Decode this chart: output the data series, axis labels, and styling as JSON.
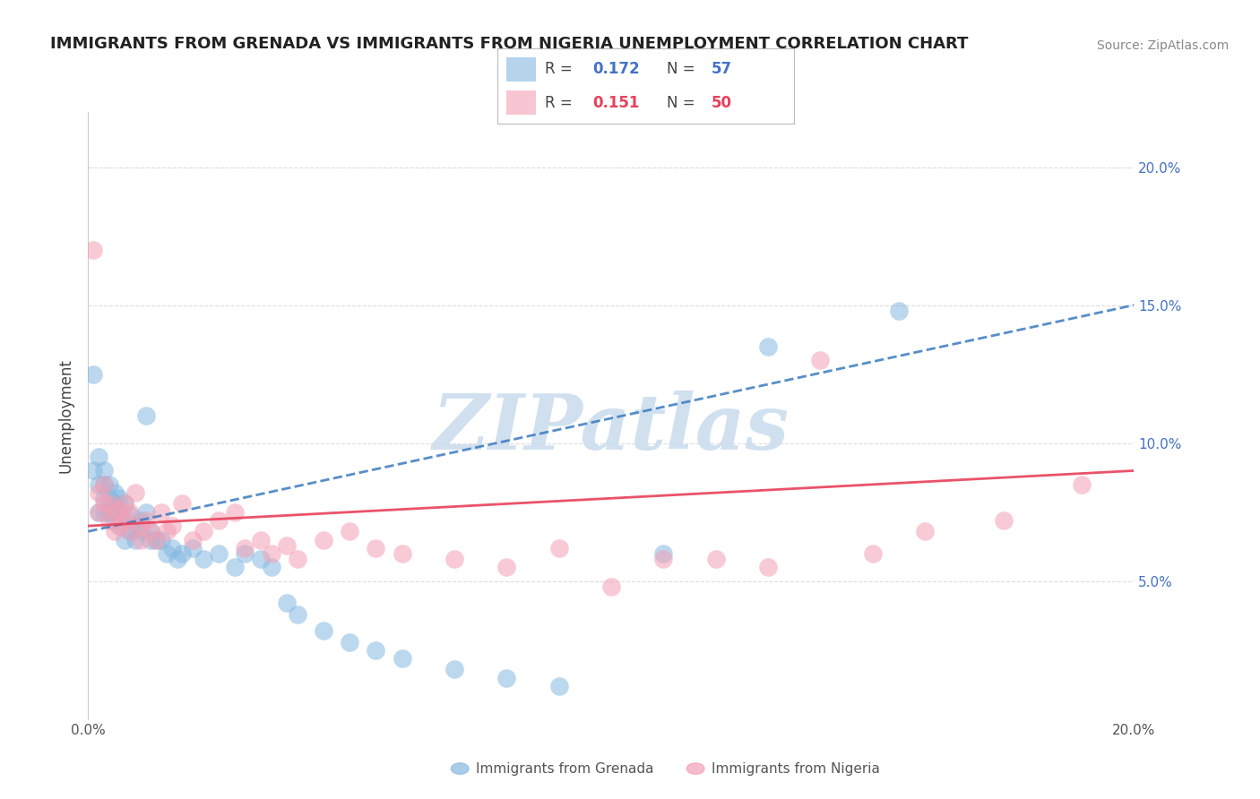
{
  "title": "IMMIGRANTS FROM GRENADA VS IMMIGRANTS FROM NIGERIA UNEMPLOYMENT CORRELATION CHART",
  "source": "Source: ZipAtlas.com",
  "ylabel": "Unemployment",
  "grenada_R": 0.172,
  "grenada_N": 57,
  "nigeria_R": 0.151,
  "nigeria_N": 50,
  "grenada_color": "#85b8e0",
  "nigeria_color": "#f4a0b5",
  "grenada_line_color": "#3a7abf",
  "nigeria_line_color": "#e8405a",
  "watermark_text": "ZIPatlas",
  "watermark_color": "#ccddee",
  "legend_label_grenada": "Immigrants from Grenada",
  "legend_label_nigeria": "Immigrants from Nigeria",
  "background_color": "#ffffff",
  "grid_color": "#dddddd",
  "xlim": [
    0.0,
    0.2
  ],
  "ylim": [
    0.0,
    0.22
  ],
  "x_tick_positions": [
    0.0,
    0.05,
    0.1,
    0.15,
    0.2
  ],
  "x_tick_labels": [
    "0.0%",
    "",
    "",
    "",
    "20.0%"
  ],
  "y_tick_positions": [
    0.05,
    0.1,
    0.15,
    0.2
  ],
  "y_tick_labels": [
    "5.0%",
    "10.0%",
    "15.0%",
    "20.0%"
  ],
  "grenada_x": [
    0.001,
    0.001,
    0.002,
    0.002,
    0.002,
    0.003,
    0.003,
    0.003,
    0.003,
    0.004,
    0.004,
    0.004,
    0.005,
    0.005,
    0.005,
    0.005,
    0.006,
    0.006,
    0.006,
    0.007,
    0.007,
    0.007,
    0.008,
    0.008,
    0.009,
    0.009,
    0.01,
    0.01,
    0.011,
    0.011,
    0.012,
    0.012,
    0.013,
    0.014,
    0.015,
    0.016,
    0.017,
    0.018,
    0.02,
    0.022,
    0.025,
    0.028,
    0.03,
    0.033,
    0.035,
    0.038,
    0.04,
    0.045,
    0.05,
    0.055,
    0.06,
    0.07,
    0.08,
    0.09,
    0.11,
    0.13,
    0.155
  ],
  "grenada_y": [
    0.125,
    0.09,
    0.085,
    0.095,
    0.075,
    0.08,
    0.09,
    0.075,
    0.085,
    0.075,
    0.08,
    0.085,
    0.075,
    0.072,
    0.078,
    0.082,
    0.07,
    0.075,
    0.08,
    0.065,
    0.072,
    0.078,
    0.068,
    0.074,
    0.065,
    0.07,
    0.068,
    0.072,
    0.075,
    0.11,
    0.065,
    0.068,
    0.065,
    0.065,
    0.06,
    0.062,
    0.058,
    0.06,
    0.062,
    0.058,
    0.06,
    0.055,
    0.06,
    0.058,
    0.055,
    0.042,
    0.038,
    0.032,
    0.028,
    0.025,
    0.022,
    0.018,
    0.015,
    0.012,
    0.06,
    0.135,
    0.148
  ],
  "nigeria_x": [
    0.001,
    0.002,
    0.002,
    0.003,
    0.003,
    0.004,
    0.004,
    0.005,
    0.005,
    0.006,
    0.006,
    0.007,
    0.007,
    0.008,
    0.008,
    0.009,
    0.01,
    0.01,
    0.011,
    0.012,
    0.013,
    0.014,
    0.015,
    0.016,
    0.018,
    0.02,
    0.022,
    0.025,
    0.028,
    0.03,
    0.033,
    0.035,
    0.038,
    0.04,
    0.045,
    0.05,
    0.055,
    0.06,
    0.07,
    0.08,
    0.09,
    0.1,
    0.11,
    0.12,
    0.13,
    0.14,
    0.15,
    0.16,
    0.175,
    0.19
  ],
  "nigeria_y": [
    0.17,
    0.075,
    0.082,
    0.078,
    0.085,
    0.072,
    0.078,
    0.068,
    0.075,
    0.07,
    0.076,
    0.072,
    0.078,
    0.068,
    0.075,
    0.082,
    0.065,
    0.07,
    0.072,
    0.068,
    0.065,
    0.075,
    0.068,
    0.07,
    0.078,
    0.065,
    0.068,
    0.072,
    0.075,
    0.062,
    0.065,
    0.06,
    0.063,
    0.058,
    0.065,
    0.068,
    0.062,
    0.06,
    0.058,
    0.055,
    0.062,
    0.048,
    0.058,
    0.058,
    0.055,
    0.13,
    0.06,
    0.068,
    0.072,
    0.085
  ],
  "grenada_trend_start_y": 0.068,
  "grenada_trend_end_y": 0.15,
  "nigeria_trend_start_y": 0.07,
  "nigeria_trend_end_y": 0.09
}
